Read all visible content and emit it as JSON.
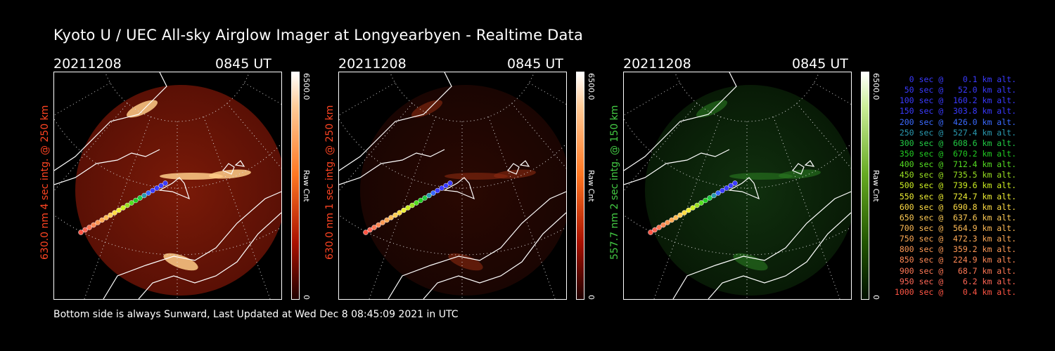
{
  "title": "Kyoto U / UEC All-sky Airglow Imager at Longyearbyen - Realtime Data",
  "panels": [
    {
      "date": "20211208",
      "time": "0845 UT",
      "ylabel": "630.0 nm 4 sec intg. @ 250 km",
      "ylabel_color": "#ff4422",
      "cbar_max": "6500.0",
      "cbar_unit": "Raw Cnt",
      "cbar_min": "0",
      "tint": "red",
      "brightness": "high"
    },
    {
      "date": "20211208",
      "time": "0845 UT",
      "ylabel": "630.0 nm 1 sec intg. @ 250 km",
      "ylabel_color": "#ff4422",
      "cbar_max": "6500.0",
      "cbar_unit": "Raw Cnt",
      "cbar_min": "0",
      "tint": "red",
      "brightness": "low"
    },
    {
      "date": "20211208",
      "time": "0845 UT",
      "ylabel": "557.7 nm 2 sec intg. @ 150 km",
      "ylabel_color": "#44cc44",
      "cbar_max": "6500.0",
      "cbar_unit": "Raw Cnt",
      "cbar_min": "0",
      "tint": "green",
      "brightness": "low"
    }
  ],
  "footer": "Bottom side is always Sunward, Last Updated at Wed Dec  8 08:45:09 2021 in UTC",
  "legend": [
    {
      "text": "   0 sec @    0.1 km alt.",
      "color": "#3a3aff"
    },
    {
      "text": "  50 sec @   52.0 km alt.",
      "color": "#3a3aff"
    },
    {
      "text": " 100 sec @  160.2 km alt.",
      "color": "#3a3aff"
    },
    {
      "text": " 150 sec @  303.8 km alt.",
      "color": "#3a3aff"
    },
    {
      "text": " 200 sec @  426.0 km alt.",
      "color": "#3a6aff"
    },
    {
      "text": " 250 sec @  527.4 km alt.",
      "color": "#2a9ab0"
    },
    {
      "text": " 300 sec @  608.6 km alt.",
      "color": "#22cc44"
    },
    {
      "text": " 350 sec @  670.2 km alt.",
      "color": "#22cc22"
    },
    {
      "text": " 400 sec @  712.4 km alt.",
      "color": "#55dd22"
    },
    {
      "text": " 450 sec @  735.5 km alt.",
      "color": "#99e022"
    },
    {
      "text": " 500 sec @  739.6 km alt.",
      "color": "#ccee22"
    },
    {
      "text": " 550 sec @  724.7 km alt.",
      "color": "#eeee33"
    },
    {
      "text": " 600 sec @  690.8 km alt.",
      "color": "#ffdd44"
    },
    {
      "text": " 650 sec @  637.6 km alt.",
      "color": "#ffcc55"
    },
    {
      "text": " 700 sec @  564.9 km alt.",
      "color": "#ffbb55"
    },
    {
      "text": " 750 sec @  472.3 km alt.",
      "color": "#ffaa55"
    },
    {
      "text": " 800 sec @  359.2 km alt.",
      "color": "#ff9955"
    },
    {
      "text": " 850 sec @  224.9 km alt.",
      "color": "#ff8855"
    },
    {
      "text": " 900 sec @   68.7 km alt.",
      "color": "#ff7755"
    },
    {
      "text": " 950 sec @    6.2 km alt.",
      "color": "#ff6655"
    },
    {
      "text": "1000 sec @    0.4 km alt.",
      "color": "#ff5544"
    }
  ]
}
